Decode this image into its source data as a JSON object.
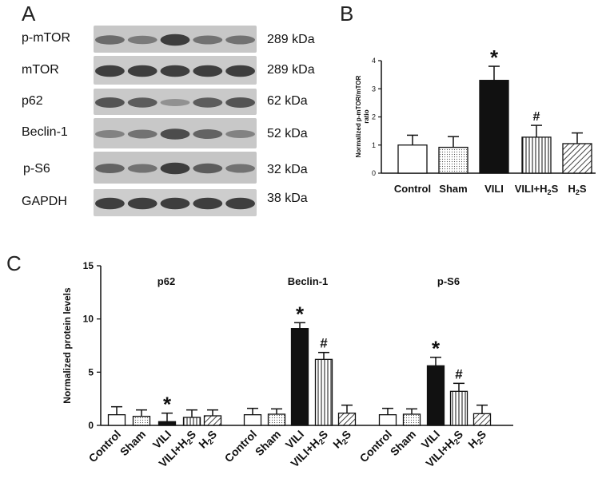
{
  "panel_a": {
    "letter": "A",
    "rows": [
      {
        "label": "p-mTOR",
        "size": "289 kDa",
        "bg": "#c7c7c7",
        "bands": [
          0.55,
          0.45,
          0.85,
          0.5,
          0.5
        ]
      },
      {
        "label": "mTOR",
        "size": "289 kDa",
        "bg": "#cbcbcb",
        "bands": [
          0.85,
          0.85,
          0.85,
          0.85,
          0.85
        ]
      },
      {
        "label": "p62",
        "size": "62 kDa",
        "bg": "#c9c9c9",
        "bands": [
          0.7,
          0.65,
          0.3,
          0.65,
          0.7
        ]
      },
      {
        "label": "Beclin-1",
        "size": "52 kDa",
        "bg": "#c8c8c8",
        "bands": [
          0.4,
          0.5,
          0.75,
          0.6,
          0.4
        ]
      },
      {
        "label": "p-S6",
        "size": "32 kDa",
        "bg": "#c5c5c5",
        "bands": [
          0.6,
          0.5,
          0.85,
          0.65,
          0.5
        ]
      },
      {
        "label": "GAPDH",
        "size": "38 kDa",
        "bg": "#cdcdcd",
        "bands": [
          0.85,
          0.85,
          0.85,
          0.85,
          0.85
        ]
      }
    ]
  },
  "panel_b": {
    "letter": "B"
  },
  "panel_c": {
    "letter": "C"
  },
  "chart_data": [
    {
      "type": "bar",
      "panel": "B",
      "title": "",
      "xlabel": "",
      "ylabel": "Normalized p-mTOR/mTOR ratio",
      "ylim": [
        0,
        4
      ],
      "yticks": [
        "0",
        "1",
        "2",
        "3",
        "4"
      ],
      "categories": [
        "Control",
        "Sham",
        "VILI",
        "VILI+H2S",
        "H2S"
      ],
      "values": [
        1.0,
        0.92,
        3.3,
        1.28,
        1.05
      ],
      "errors": [
        0.35,
        0.38,
        0.5,
        0.42,
        0.38
      ],
      "markers": [
        "",
        "",
        "*",
        "#",
        ""
      ],
      "fills": [
        "white",
        "dotted",
        "black",
        "vertical",
        "hatched"
      ]
    },
    {
      "type": "bar",
      "panel": "C",
      "title": "",
      "xlabel": "",
      "ylabel": "Normalized protein levels",
      "ylim": [
        0,
        15
      ],
      "yticks": [
        "0",
        "5",
        "10",
        "15"
      ],
      "categories": [
        "Control",
        "Sham",
        "VILI",
        "VILI+H2S",
        "H2S"
      ],
      "groups": [
        "p62",
        "Beclin-1",
        "p-S6"
      ],
      "series": [
        {
          "name": "p62",
          "values": [
            1.0,
            0.85,
            0.35,
            0.75,
            0.9
          ],
          "errors": [
            0.75,
            0.6,
            0.8,
            0.7,
            0.55
          ],
          "markers": [
            "",
            "",
            "*",
            "",
            ""
          ]
        },
        {
          "name": "Beclin-1",
          "values": [
            1.0,
            1.05,
            9.1,
            6.2,
            1.15
          ],
          "errors": [
            0.6,
            0.5,
            0.55,
            0.65,
            0.75
          ],
          "markers": [
            "",
            "",
            "*",
            "#",
            ""
          ]
        },
        {
          "name": "p-S6",
          "values": [
            1.0,
            1.05,
            5.6,
            3.2,
            1.1
          ],
          "errors": [
            0.6,
            0.5,
            0.8,
            0.75,
            0.8
          ],
          "markers": [
            "",
            "",
            "*",
            "#",
            ""
          ]
        }
      ],
      "fills": [
        "white",
        "dotted",
        "black",
        "vertical",
        "hatched"
      ]
    }
  ]
}
